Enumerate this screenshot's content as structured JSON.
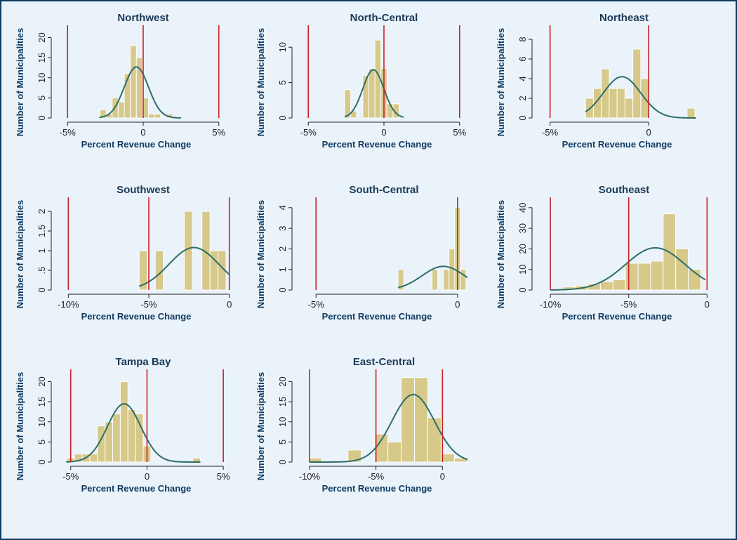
{
  "figure": {
    "colors": {
      "background": "#eaf2fa",
      "bar_fill": "#d6c98a",
      "bar_stroke": "#ffffff",
      "curve": "#2c6e6a",
      "ref_line": "#c8222b",
      "axis": "#222222",
      "label": "#0e3a5f"
    }
  },
  "chart_data": [
    {
      "type": "bar",
      "title": "Northwest",
      "xlabel": "Percent Revenue Change",
      "ylabel": "Number of Municipalities",
      "xlim": [
        -5.8,
        5.8
      ],
      "ylim": [
        0,
        22
      ],
      "xticks": [
        -5,
        0,
        5
      ],
      "xtick_labels": [
        "-5%",
        "0",
        "5%"
      ],
      "yticks": [
        0,
        5,
        10,
        15,
        20
      ],
      "ytick_labels": [
        "0",
        "5",
        "10",
        "15",
        "20"
      ],
      "ref_lines": [
        -5,
        0,
        5
      ],
      "bins": [
        [
          -2.85,
          -2.45,
          2
        ],
        [
          -2.45,
          -2.05,
          1
        ],
        [
          -2.05,
          -1.65,
          5
        ],
        [
          -1.65,
          -1.25,
          4
        ],
        [
          -1.25,
          -0.85,
          11
        ],
        [
          -0.85,
          -0.45,
          18
        ],
        [
          -0.45,
          -0.05,
          15
        ],
        [
          -0.05,
          0.35,
          5
        ],
        [
          0.35,
          0.75,
          1
        ],
        [
          0.75,
          1.15,
          1
        ],
        [
          1.55,
          1.95,
          1
        ]
      ],
      "curve": {
        "mean": -0.45,
        "sd": 0.8,
        "peak": 12.7,
        "range": [
          -2.9,
          2.5
        ]
      }
    },
    {
      "type": "bar",
      "title": "North-Central",
      "xlabel": "Percent Revenue Change",
      "ylabel": "Number of Municipalities",
      "xlim": [
        -5.8,
        5.8
      ],
      "ylim": [
        0,
        12.5
      ],
      "xticks": [
        -5,
        0,
        5
      ],
      "xtick_labels": [
        "-5%",
        "0",
        "5%"
      ],
      "yticks": [
        0,
        5,
        10
      ],
      "ytick_labels": [
        "0",
        "5",
        "10"
      ],
      "ref_lines": [
        -5,
        0,
        5
      ],
      "bins": [
        [
          -2.6,
          -2.2,
          4
        ],
        [
          -2.2,
          -1.8,
          1
        ],
        [
          -1.4,
          -1.0,
          6
        ],
        [
          -1.0,
          -0.6,
          7
        ],
        [
          -0.6,
          -0.2,
          11
        ],
        [
          -0.2,
          0.2,
          7
        ],
        [
          0.2,
          0.6,
          2
        ],
        [
          0.6,
          1.0,
          2
        ]
      ],
      "curve": {
        "mean": -0.7,
        "sd": 0.7,
        "peak": 6.8,
        "range": [
          -2.6,
          1.3
        ]
      }
    },
    {
      "type": "bar",
      "title": "Northeast",
      "xlabel": "Percent Revenue Change",
      "ylabel": "Number of Municipalities",
      "xlim": [
        -5.7,
        3.2
      ],
      "ylim": [
        0,
        9
      ],
      "xticks": [
        -5,
        0
      ],
      "xtick_labels": [
        "-5%",
        "0"
      ],
      "yticks": [
        0,
        2,
        4,
        6,
        8
      ],
      "ytick_labels": [
        "0",
        "2",
        "4",
        "6",
        "8"
      ],
      "ref_lines": [
        -5,
        0
      ],
      "bins": [
        [
          -3.2,
          -2.8,
          2
        ],
        [
          -2.8,
          -2.4,
          3
        ],
        [
          -2.4,
          -2.0,
          5
        ],
        [
          -2.0,
          -1.6,
          3
        ],
        [
          -1.6,
          -1.2,
          3
        ],
        [
          -1.2,
          -0.8,
          2
        ],
        [
          -0.8,
          -0.4,
          7
        ],
        [
          -0.4,
          0.0,
          4
        ],
        [
          1.95,
          2.35,
          1
        ]
      ],
      "curve": {
        "mean": -1.35,
        "sd": 0.95,
        "peak": 4.2,
        "range": [
          -3.2,
          2.4
        ]
      }
    },
    {
      "type": "bar",
      "title": "Southwest",
      "xlabel": "Percent Revenue Change",
      "ylabel": "Number of Municipalities",
      "xlim": [
        -10.8,
        0.1
      ],
      "ylim": [
        0,
        2.25
      ],
      "xticks": [
        -10,
        -5,
        0
      ],
      "xtick_labels": [
        "-10%",
        "-5%",
        "0"
      ],
      "yticks": [
        0,
        0.5,
        1,
        1.5,
        2
      ],
      "ytick_labels": [
        "0",
        ".5",
        "1",
        "1.5",
        "2"
      ],
      "ref_lines": [
        -10,
        -5,
        0
      ],
      "bins": [
        [
          -5.6,
          -5.1,
          1
        ],
        [
          -4.6,
          -4.1,
          1
        ],
        [
          -2.8,
          -2.3,
          2
        ],
        [
          -1.7,
          -1.2,
          2
        ],
        [
          -1.2,
          -0.7,
          1
        ],
        [
          -0.7,
          -0.2,
          1
        ]
      ],
      "curve": {
        "mean": -2.2,
        "sd": 1.55,
        "peak": 1.08,
        "range": [
          -5.6,
          0.0
        ]
      }
    },
    {
      "type": "bar",
      "title": "South-Central",
      "xlabel": "Percent Revenue Change",
      "ylabel": "Number of Municipalities",
      "xlim": [
        -5.7,
        0.5
      ],
      "ylim": [
        0,
        4.3
      ],
      "xticks": [
        -5,
        0
      ],
      "xtick_labels": [
        "-5%",
        "0"
      ],
      "yticks": [
        0,
        1,
        2,
        3,
        4
      ],
      "ytick_labels": [
        "0",
        "1",
        "2",
        "3",
        "4"
      ],
      "ref_lines": [
        -5,
        0
      ],
      "bins": [
        [
          -2.1,
          -1.9,
          1
        ],
        [
          -0.9,
          -0.7,
          1
        ],
        [
          -0.5,
          -0.3,
          1
        ],
        [
          -0.3,
          -0.1,
          2
        ],
        [
          -0.1,
          0.1,
          4
        ],
        [
          0.1,
          0.3,
          1
        ]
      ],
      "curve": {
        "mean": -0.5,
        "sd": 0.75,
        "peak": 1.15,
        "range": [
          -2.1,
          0.35
        ]
      }
    },
    {
      "type": "bar",
      "title": "Southeast",
      "xlabel": "Percent Revenue Change",
      "ylabel": "Number of Municipalities",
      "xlim": [
        -10.9,
        0.3
      ],
      "ylim": [
        0,
        43
      ],
      "xticks": [
        -10,
        -5,
        0
      ],
      "xtick_labels": [
        "-10%",
        "-5%",
        "0"
      ],
      "yticks": [
        0,
        10,
        20,
        30,
        40
      ],
      "ytick_labels": [
        "0",
        "10",
        "20",
        "30",
        "40"
      ],
      "ref_lines": [
        -10,
        -5,
        0
      ],
      "bins": [
        [
          -10.0,
          -9.2,
          0.5
        ],
        [
          -9.2,
          -8.4,
          1.5
        ],
        [
          -8.4,
          -7.6,
          2
        ],
        [
          -7.6,
          -6.8,
          3
        ],
        [
          -6.8,
          -6.0,
          4
        ],
        [
          -6.0,
          -5.2,
          5
        ],
        [
          -5.2,
          -4.4,
          13
        ],
        [
          -4.4,
          -3.6,
          13
        ],
        [
          -3.6,
          -2.8,
          14
        ],
        [
          -2.8,
          -2.0,
          37
        ],
        [
          -2.0,
          -1.2,
          20
        ],
        [
          -1.2,
          -0.4,
          10
        ]
      ],
      "curve": {
        "mean": -3.3,
        "sd": 1.9,
        "peak": 20.5,
        "range": [
          -10.0,
          -0.1
        ]
      }
    },
    {
      "type": "bar",
      "title": "Tampa Bay",
      "xlabel": "Percent Revenue Change",
      "ylabel": "Number of Municipalities",
      "xlim": [
        -6.0,
        5.5
      ],
      "ylim": [
        0,
        22
      ],
      "xticks": [
        -5,
        0,
        5
      ],
      "xtick_labels": [
        "-5%",
        "0",
        "5%"
      ],
      "yticks": [
        0,
        5,
        10,
        15,
        20
      ],
      "ytick_labels": [
        "0",
        "5",
        "10",
        "15",
        "20"
      ],
      "ref_lines": [
        -5,
        0,
        5
      ],
      "bins": [
        [
          -5.25,
          -4.75,
          1
        ],
        [
          -4.75,
          -4.25,
          2
        ],
        [
          -4.25,
          -3.75,
          2
        ],
        [
          -3.75,
          -3.25,
          2
        ],
        [
          -3.25,
          -2.75,
          9
        ],
        [
          -2.75,
          -2.25,
          10
        ],
        [
          -2.25,
          -1.75,
          12
        ],
        [
          -1.75,
          -1.25,
          20
        ],
        [
          -1.25,
          -0.75,
          13
        ],
        [
          -0.75,
          -0.25,
          12
        ],
        [
          -0.25,
          0.25,
          4
        ],
        [
          3.0,
          3.5,
          1
        ]
      ],
      "curve": {
        "mean": -1.5,
        "sd": 1.1,
        "peak": 14.5,
        "range": [
          -5.3,
          3.5
        ]
      }
    },
    {
      "type": "bar",
      "title": "East-Central",
      "xlabel": "Percent Revenue Change",
      "ylabel": "Number of Municipalities",
      "xlim": [
        -11.0,
        2.2
      ],
      "ylim": [
        0,
        22
      ],
      "xticks": [
        -10,
        -5,
        0
      ],
      "xtick_labels": [
        "-10%",
        "-5%",
        "0"
      ],
      "yticks": [
        0,
        5,
        10,
        15,
        20
      ],
      "ytick_labels": [
        "0",
        "5",
        "10",
        "15",
        "20"
      ],
      "ref_lines": [
        -10,
        -5,
        0
      ],
      "bins": [
        [
          -10.1,
          -9.1,
          1
        ],
        [
          -7.1,
          -6.1,
          3
        ],
        [
          -5.1,
          -4.1,
          7
        ],
        [
          -4.1,
          -3.1,
          5
        ],
        [
          -3.1,
          -2.1,
          21
        ],
        [
          -2.1,
          -1.1,
          21
        ],
        [
          -1.1,
          -0.1,
          11
        ],
        [
          -0.1,
          0.9,
          2
        ],
        [
          0.9,
          1.9,
          1
        ]
      ],
      "curve": {
        "mean": -2.2,
        "sd": 1.6,
        "peak": 16.8,
        "range": [
          -10.0,
          1.9
        ]
      }
    }
  ]
}
